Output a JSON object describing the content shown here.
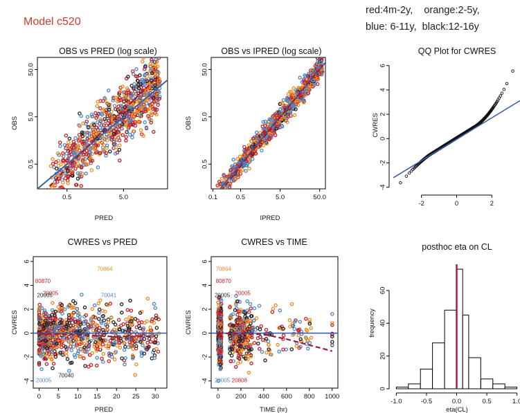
{
  "header": {
    "model_title": "Model c520",
    "legend_line1": "red:4m-2y,    orange:2-5y,",
    "legend_line2": "blue: 6-11y,  black:12-16y"
  },
  "colors": {
    "red": "#c8202a",
    "orange": "#f08a1e",
    "blue": "#4f86c9",
    "black": "#222222",
    "trend": "#9b1a3a",
    "reference": "#3a5ea8"
  },
  "chart_data": [
    {
      "id": "obs-vs-pred",
      "type": "scatter",
      "title": "OBS vs PRED (log scale)",
      "xlabel": "PRED",
      "ylabel": "OBS",
      "x_scale": "log",
      "y_scale": "log",
      "xlim": [
        0.15,
        30
      ],
      "ylim": [
        0.15,
        90
      ],
      "x_ticks": [
        0.5,
        5.0
      ],
      "x_tick_labels": [
        "0.5",
        "5.0"
      ],
      "y_ticks": [
        0.5,
        5.0,
        50.0
      ],
      "y_tick_labels": [
        "0.5",
        "5.0",
        "50.0"
      ],
      "reference_line": "identity",
      "trend": [
        [
          0.2,
          0.13
        ],
        [
          1,
          1.0
        ],
        [
          5,
          7
        ],
        [
          20,
          35
        ]
      ]
    },
    {
      "id": "obs-vs-ipred",
      "type": "scatter",
      "title": "OBS vs IPRED (log scale)",
      "xlabel": "IPRED",
      "ylabel": "OBS",
      "x_scale": "log",
      "y_scale": "log",
      "xlim": [
        0.09,
        70
      ],
      "ylim": [
        0.15,
        90
      ],
      "x_ticks": [
        0.1,
        0.5,
        5.0,
        50.0
      ],
      "x_tick_labels": [
        "0.1",
        "0.5",
        "5.0",
        "50.0"
      ],
      "y_ticks": [
        0.5,
        5.0,
        50.0
      ],
      "y_tick_labels": [
        "0.5",
        "5.0",
        "50.0"
      ],
      "reference_line": "identity",
      "trend": [
        [
          0.12,
          0.1
        ],
        [
          1,
          0.95
        ],
        [
          10,
          10
        ],
        [
          60,
          62
        ]
      ]
    },
    {
      "id": "qq-cwres",
      "type": "scatter",
      "title": "QQ Plot for CWRES",
      "xlabel": "",
      "ylabel": "CWRES",
      "xlim": [
        -3.6,
        3.6
      ],
      "ylim": [
        -4.3,
        6.5
      ],
      "x_ticks": [
        -2,
        0,
        2
      ],
      "x_tick_labels": [
        "-2",
        "0",
        "2"
      ],
      "y_ticks": [
        -4,
        -2,
        0,
        2,
        4,
        6
      ],
      "y_tick_labels": [
        "-4",
        "-2",
        "0",
        "2",
        "4",
        "6"
      ],
      "reference_line": {
        "intercept": -0.05,
        "slope": 0.88
      }
    },
    {
      "id": "cwres-vs-pred",
      "type": "scatter",
      "title": "CWRES vs PRED",
      "xlabel": "PRED",
      "ylabel": "CWRES",
      "xlim": [
        -1.5,
        33
      ],
      "ylim": [
        -4.6,
        6.4
      ],
      "x_ticks": [
        0,
        5,
        10,
        15,
        20,
        25,
        30
      ],
      "x_tick_labels": [
        "0",
        "5",
        "10",
        "15",
        "20",
        "25",
        "30"
      ],
      "y_ticks": [
        -4,
        -2,
        0,
        2,
        4,
        6
      ],
      "y_tick_labels": [
        "-4",
        "-2",
        "0",
        "2",
        "4",
        "6"
      ],
      "zero_line": 0,
      "trend": [
        [
          0,
          -0.05
        ],
        [
          10,
          -0.15
        ],
        [
          20,
          -0.3
        ],
        [
          30,
          -0.25
        ]
      ],
      "point_labels": [
        {
          "text": "70864",
          "x": 15,
          "y": 5.2,
          "color": "orange"
        },
        {
          "text": "80870",
          "x": -1,
          "y": 4.2,
          "color": "red"
        },
        {
          "text": "20005",
          "x": 1,
          "y": 3.2,
          "color": "red"
        },
        {
          "text": "20005",
          "x": -0.5,
          "y": 3.0,
          "color": "black"
        },
        {
          "text": "70041",
          "x": 16,
          "y": 3.0,
          "color": "blue"
        },
        {
          "text": "70040",
          "x": 5,
          "y": -3.7,
          "color": "black"
        },
        {
          "text": "20005",
          "x": -0.8,
          "y": -4.1,
          "color": "blue"
        }
      ]
    },
    {
      "id": "cwres-vs-time",
      "type": "scatter",
      "title": "CWRES vs TIME",
      "xlabel": "TIME (hr)",
      "ylabel": "CWRES",
      "xlim": [
        -60,
        1050
      ],
      "ylim": [
        -4.6,
        6.4
      ],
      "x_ticks": [
        0,
        200,
        400,
        600,
        800,
        1000
      ],
      "x_tick_labels": [
        "0",
        "200",
        "400",
        "600",
        "800",
        "1000"
      ],
      "y_ticks": [
        -4,
        -2,
        0,
        2,
        4,
        6
      ],
      "y_tick_labels": [
        "-4",
        "-2",
        "0",
        "2",
        "4",
        "6"
      ],
      "zero_line": 0,
      "trend": [
        [
          0,
          0.0
        ],
        [
          400,
          -0.1
        ],
        [
          600,
          -0.5
        ],
        [
          1000,
          -1.5
        ]
      ],
      "point_labels": [
        {
          "text": "70864",
          "x": -20,
          "y": 5.2,
          "color": "orange"
        },
        {
          "text": "80870",
          "x": -20,
          "y": 4.2,
          "color": "red"
        },
        {
          "text": "20005",
          "x": 150,
          "y": 3.2,
          "color": "red"
        },
        {
          "text": "20005",
          "x": -30,
          "y": 3.0,
          "color": "black"
        },
        {
          "text": "20808",
          "x": 120,
          "y": -4.1,
          "color": "red"
        },
        {
          "text": "20005",
          "x": -30,
          "y": -4.1,
          "color": "blue"
        }
      ]
    },
    {
      "id": "posthoc-eta-cl",
      "type": "bar",
      "title": "posthoc eta on CL",
      "xlabel": "eta(CL)",
      "ylabel": "frequency",
      "xlim": [
        -1.05,
        1.05
      ],
      "ylim": [
        0,
        76
      ],
      "x_ticks": [
        -1.0,
        -0.5,
        0.0,
        0.5,
        1.0
      ],
      "x_tick_labels": [
        "-1.0",
        "-0.5",
        "0.0",
        "0.5",
        "1.0"
      ],
      "y_ticks": [
        0,
        20,
        40,
        60
      ],
      "y_tick_labels": [
        "0",
        "20",
        "40",
        "60"
      ],
      "bin_edges": [
        -1.0,
        -0.8,
        -0.6,
        -0.4,
        -0.2,
        0.0,
        0.1,
        0.2,
        0.4,
        0.6,
        0.8,
        1.0
      ],
      "counts": [
        1,
        3,
        12,
        28,
        48,
        73,
        45,
        19,
        6,
        3,
        1
      ],
      "vline": 0.0
    }
  ]
}
